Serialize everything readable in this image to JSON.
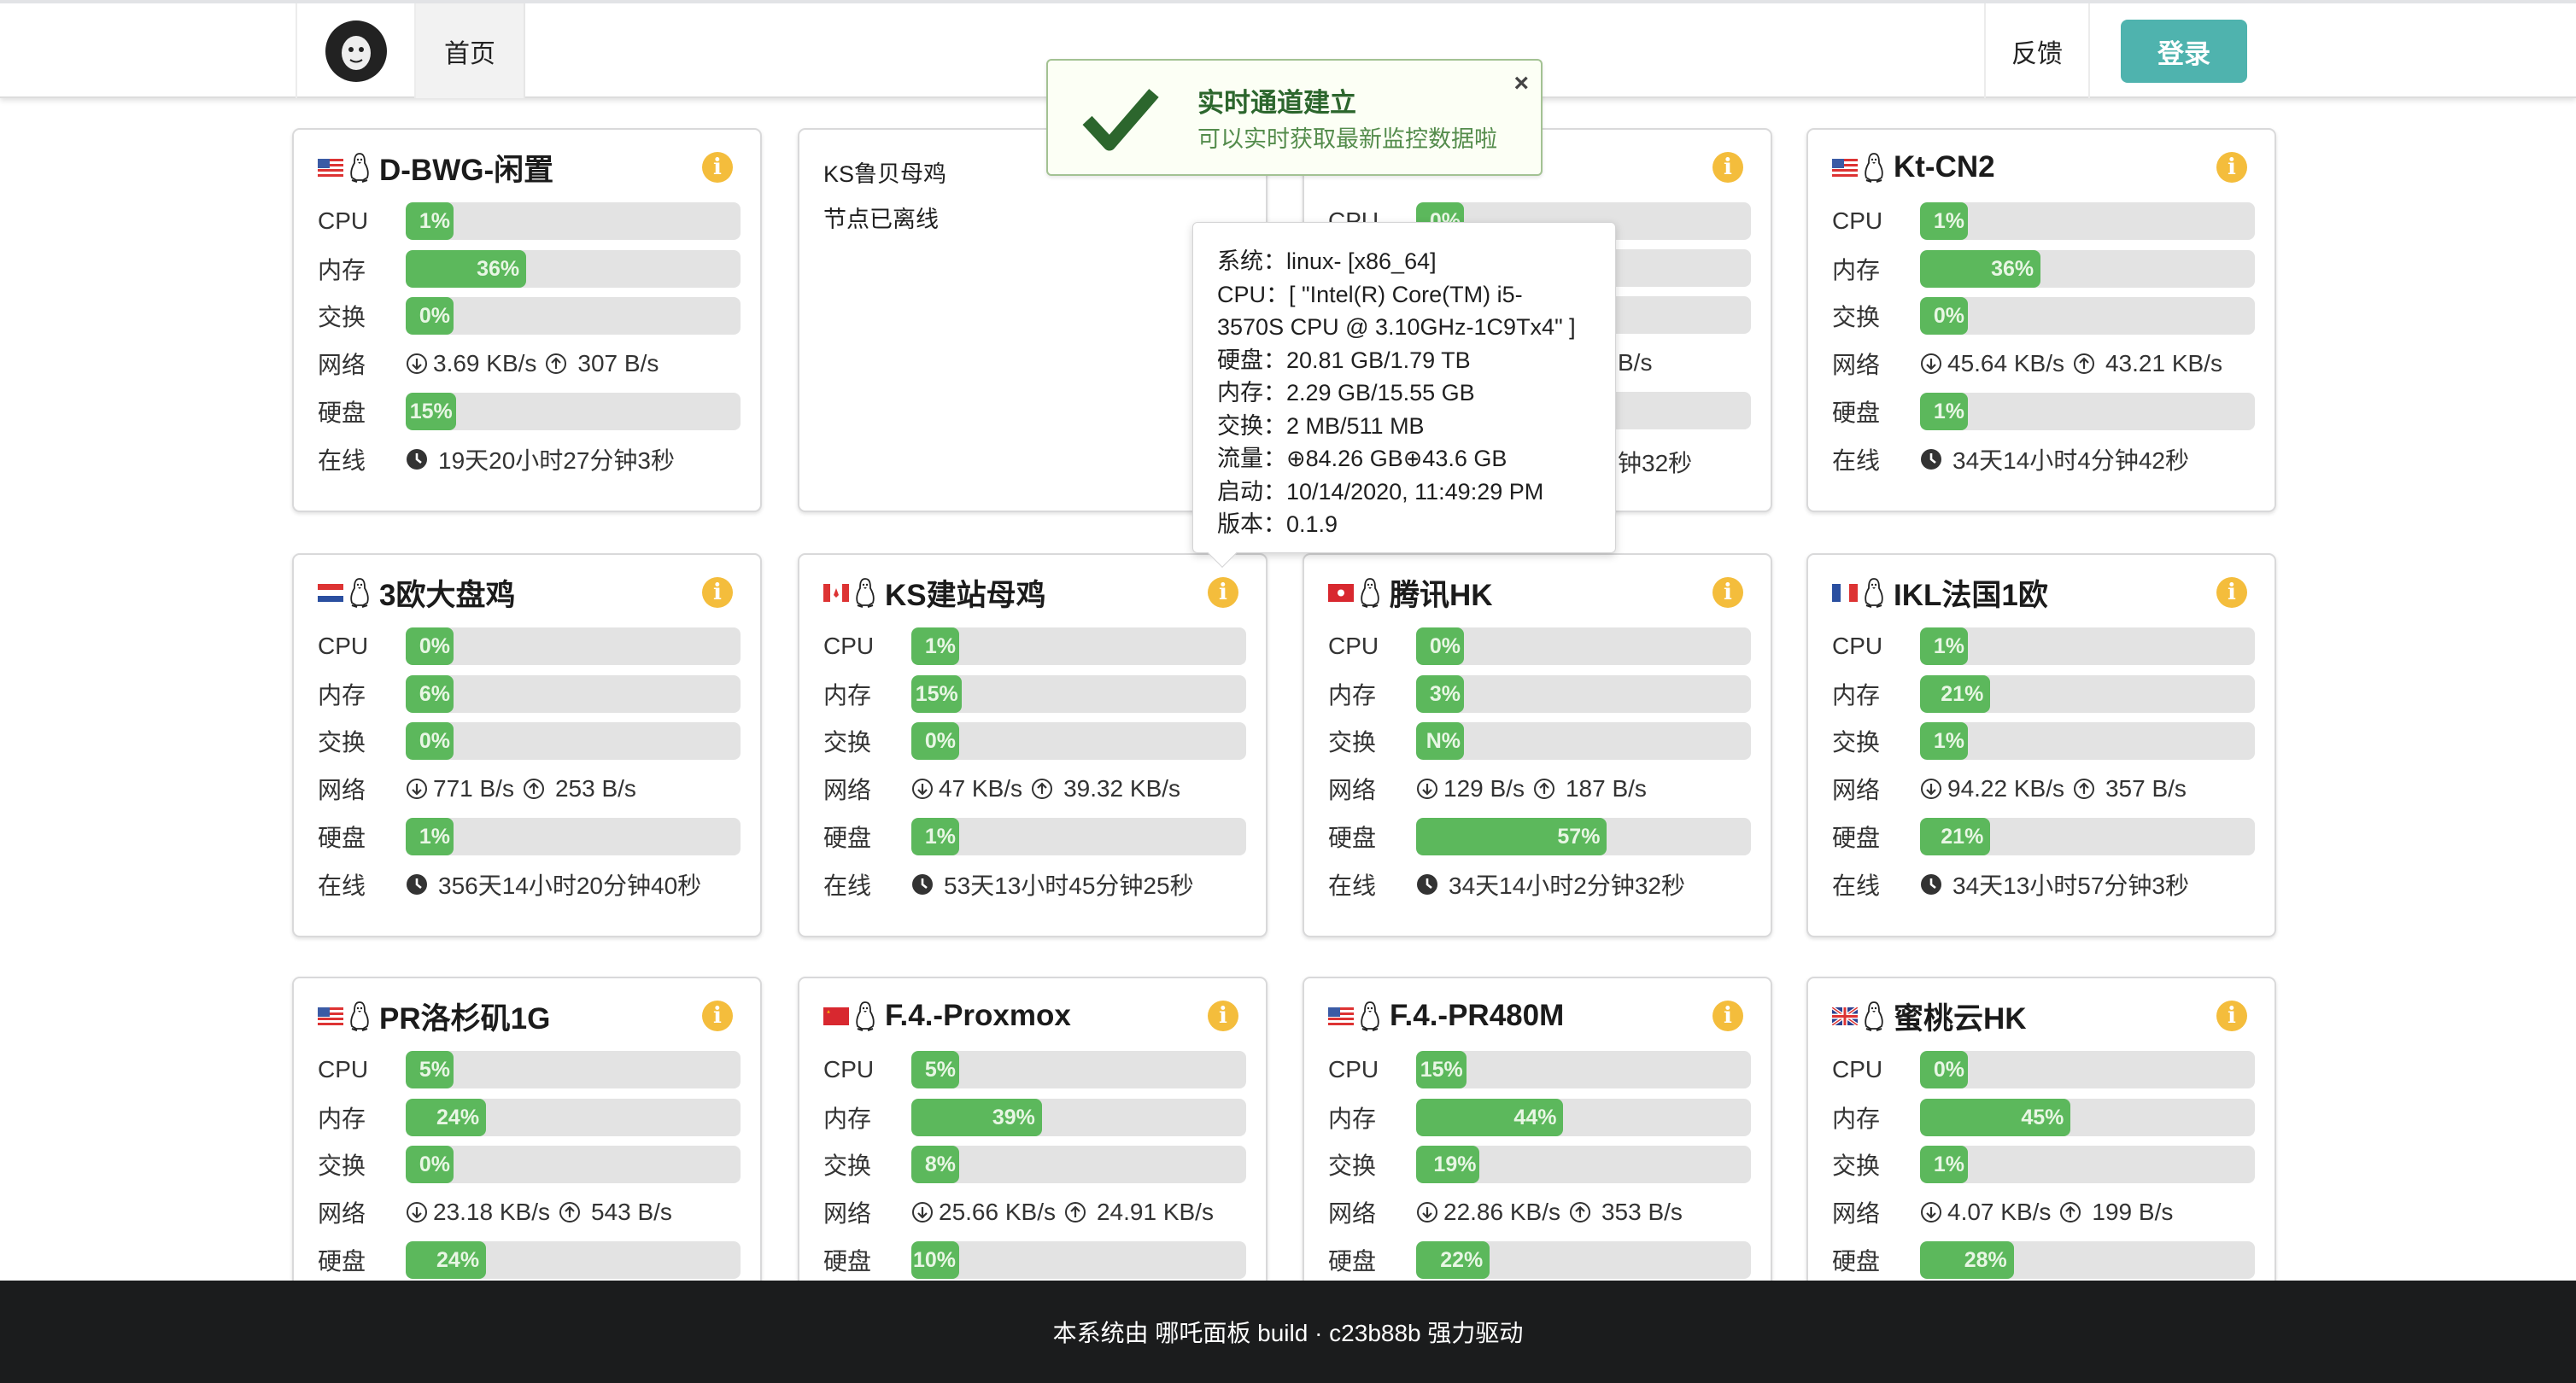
{
  "nav": {
    "home": "首页",
    "feedback": "反馈",
    "login": "登录"
  },
  "notification": {
    "title": "实时通道建立",
    "message": "可以实时获取最新监控数据啦",
    "close": "×"
  },
  "labels": {
    "cpu": "CPU",
    "mem": "内存",
    "swap": "交换",
    "net": "网络",
    "disk": "硬盘",
    "uptime": "在线"
  },
  "colors": {
    "bar_fill": "#5cb85c",
    "bar_track": "#e3e3e3",
    "info": "#f4bd3c",
    "login": "#4fb3ae",
    "notif_text": "#2c662d"
  },
  "servers": [
    {
      "name": "D-BWG-闲置",
      "flag": "us",
      "os": "linux-penguin-icon",
      "cpu": {
        "text": "1%",
        "pct": 1
      },
      "mem": {
        "text": "36%",
        "pct": 36
      },
      "swap": {
        "text": "0%",
        "pct": 0
      },
      "net_down": "3.69 KB/s",
      "net_up": "307 B/s",
      "disk": {
        "text": "15%",
        "pct": 15
      },
      "uptime": "19天20小时27分钟3秒"
    },
    {
      "name": "KS鲁贝母鸡",
      "offline": true,
      "offline_text": "节点已离线"
    },
    {
      "partial": true,
      "cpu": {
        "text": "0%",
        "pct": 0
      },
      "net_fragment": "B/s",
      "uptime_fragment": "钟32秒"
    },
    {
      "name": "Kt-CN2",
      "flag": "us",
      "os": "linux-penguin-icon",
      "cpu": {
        "text": "1%",
        "pct": 1
      },
      "mem": {
        "text": "36%",
        "pct": 36
      },
      "swap": {
        "text": "0%",
        "pct": 0
      },
      "net_down": "45.64 KB/s",
      "net_up": "43.21 KB/s",
      "disk": {
        "text": "1%",
        "pct": 1
      },
      "uptime": "34天14小时4分钟42秒"
    },
    {
      "name": "3欧大盘鸡",
      "flag": "nl",
      "os": "linux-penguin-icon",
      "cpu": {
        "text": "0%",
        "pct": 0
      },
      "mem": {
        "text": "6%",
        "pct": 6
      },
      "swap": {
        "text": "0%",
        "pct": 0
      },
      "net_down": "771 B/s",
      "net_up": "253 B/s",
      "disk": {
        "text": "1%",
        "pct": 1
      },
      "uptime": "356天14小时20分钟40秒"
    },
    {
      "name": "KS建站母鸡",
      "flag": "ca",
      "os": "linux-penguin-icon",
      "cpu": {
        "text": "1%",
        "pct": 1
      },
      "mem": {
        "text": "15%",
        "pct": 15
      },
      "swap": {
        "text": "0%",
        "pct": 0
      },
      "net_down": "47 KB/s",
      "net_up": "39.32 KB/s",
      "disk": {
        "text": "1%",
        "pct": 1
      },
      "uptime": "53天13小时45分钟25秒"
    },
    {
      "name": "腾讯HK",
      "flag": "hk",
      "os": "linux-penguin-icon",
      "cpu": {
        "text": "0%",
        "pct": 0
      },
      "mem": {
        "text": "3%",
        "pct": 3
      },
      "swap": {
        "text": "N%",
        "pct": 0
      },
      "net_down": "129 B/s",
      "net_up": "187 B/s",
      "disk": {
        "text": "57%",
        "pct": 57
      },
      "uptime": "34天14小时2分钟32秒"
    },
    {
      "name": "IKL法国1欧",
      "flag": "fr",
      "os": "linux-penguin-icon",
      "cpu": {
        "text": "1%",
        "pct": 1
      },
      "mem": {
        "text": "21%",
        "pct": 21
      },
      "swap": {
        "text": "1%",
        "pct": 1
      },
      "net_down": "94.22 KB/s",
      "net_up": "357 B/s",
      "disk": {
        "text": "21%",
        "pct": 21
      },
      "uptime": "34天13小时57分钟3秒"
    },
    {
      "name": "PR洛杉矶1G",
      "flag": "us",
      "os": "linux-penguin-icon",
      "cpu": {
        "text": "5%",
        "pct": 5
      },
      "mem": {
        "text": "24%",
        "pct": 24
      },
      "swap": {
        "text": "0%",
        "pct": 0
      },
      "net_down": "23.18 KB/s",
      "net_up": "543 B/s",
      "disk": {
        "text": "24%",
        "pct": 24
      }
    },
    {
      "name": "F.4.-Proxmox",
      "flag": "cn",
      "os": "linux-penguin-icon",
      "cpu": {
        "text": "5%",
        "pct": 5
      },
      "mem": {
        "text": "39%",
        "pct": 39
      },
      "swap": {
        "text": "8%",
        "pct": 8
      },
      "net_down": "25.66 KB/s",
      "net_up": "24.91 KB/s",
      "disk": {
        "text": "10%",
        "pct": 10
      }
    },
    {
      "name": "F.4.-PR480M",
      "flag": "us",
      "os": "linux-penguin-icon",
      "cpu": {
        "text": "15%",
        "pct": 15
      },
      "mem": {
        "text": "44%",
        "pct": 44
      },
      "swap": {
        "text": "19%",
        "pct": 19
      },
      "net_down": "22.86 KB/s",
      "net_up": "353 B/s",
      "disk": {
        "text": "22%",
        "pct": 22
      }
    },
    {
      "name": "蜜桃云HK",
      "flag": "gb",
      "os": "linux-penguin-icon",
      "cpu": {
        "text": "0%",
        "pct": 0
      },
      "mem": {
        "text": "45%",
        "pct": 45
      },
      "swap": {
        "text": "1%",
        "pct": 1
      },
      "net_down": "4.07 KB/s",
      "net_up": "199 B/s",
      "disk": {
        "text": "28%",
        "pct": 28
      }
    }
  ],
  "tooltip": {
    "lines": [
      "系统：linux- [x86_64]",
      "CPU：[ \"Intel(R) Core(TM) i5-",
      "3570S CPU @ 3.10GHz-1C9Tx4\" ]",
      "硬盘：20.81 GB/1.79 TB",
      "内存：2.29 GB/15.55 GB",
      "交换：2 MB/511 MB",
      "流量：⊕84.26 GB⊕43.6 GB",
      "启动：10/14/2020, 11:49:29 PM",
      "版本：0.1.9"
    ]
  },
  "footer": {
    "text": "本系统由 哪吒面板 build · c23b88b 强力驱动"
  }
}
